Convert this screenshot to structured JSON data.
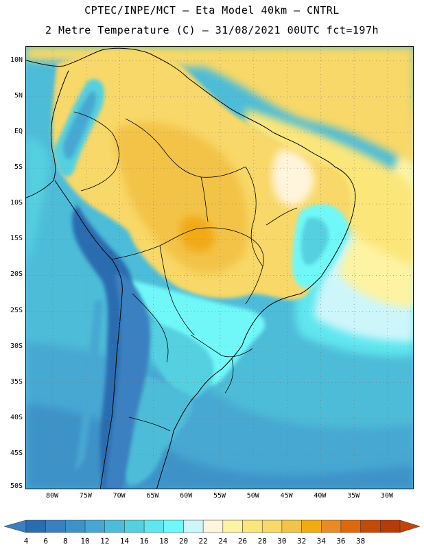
{
  "header": {
    "title_line1": "CPTEC/INPE/MCT –  Eta Model 40km – CNTRL",
    "title_line2": "2 Metre Temperature (C) – 31/08/2021 00UTC fct=197h"
  },
  "map": {
    "lon_range": [
      -84,
      -26
    ],
    "lat_range": [
      -50,
      12
    ],
    "lat_labels": [
      "10N",
      "5N",
      "EQ",
      "5S",
      "10S",
      "15S",
      "20S",
      "25S",
      "30S",
      "35S",
      "40S",
      "45S",
      "50S"
    ],
    "lat_values": [
      10,
      5,
      0,
      -5,
      -10,
      -15,
      -20,
      -25,
      -30,
      -35,
      -40,
      -45,
      -50
    ],
    "lon_labels": [
      "80W",
      "75W",
      "70W",
      "65W",
      "60W",
      "55W",
      "50W",
      "45W",
      "40W",
      "35W",
      "30W"
    ],
    "lon_values": [
      -80,
      -75,
      -70,
      -65,
      -60,
      -55,
      -50,
      -45,
      -40,
      -35,
      -30
    ]
  },
  "colorbar": {
    "unit": "C",
    "levels": [
      "4",
      "6",
      "8",
      "10",
      "12",
      "14",
      "16",
      "18",
      "20",
      "22",
      "24",
      "26",
      "28",
      "30",
      "32",
      "34",
      "36",
      "38"
    ],
    "colors": [
      "#2b6cb0",
      "#3a80c0",
      "#3c93c8",
      "#46a8d2",
      "#4dbcd8",
      "#55d0e0",
      "#5fe6ef",
      "#6ff8f8",
      "#cdf6fb",
      "#fff5dc",
      "#fdf3a2",
      "#fbe67a",
      "#f8d868",
      "#f3c347",
      "#f2aa12",
      "#e98a24",
      "#e0680b",
      "#c44a08",
      "#b83a08"
    ],
    "low_arrow_color": "#3a80c0",
    "high_arrow_color": "#c0440a"
  }
}
